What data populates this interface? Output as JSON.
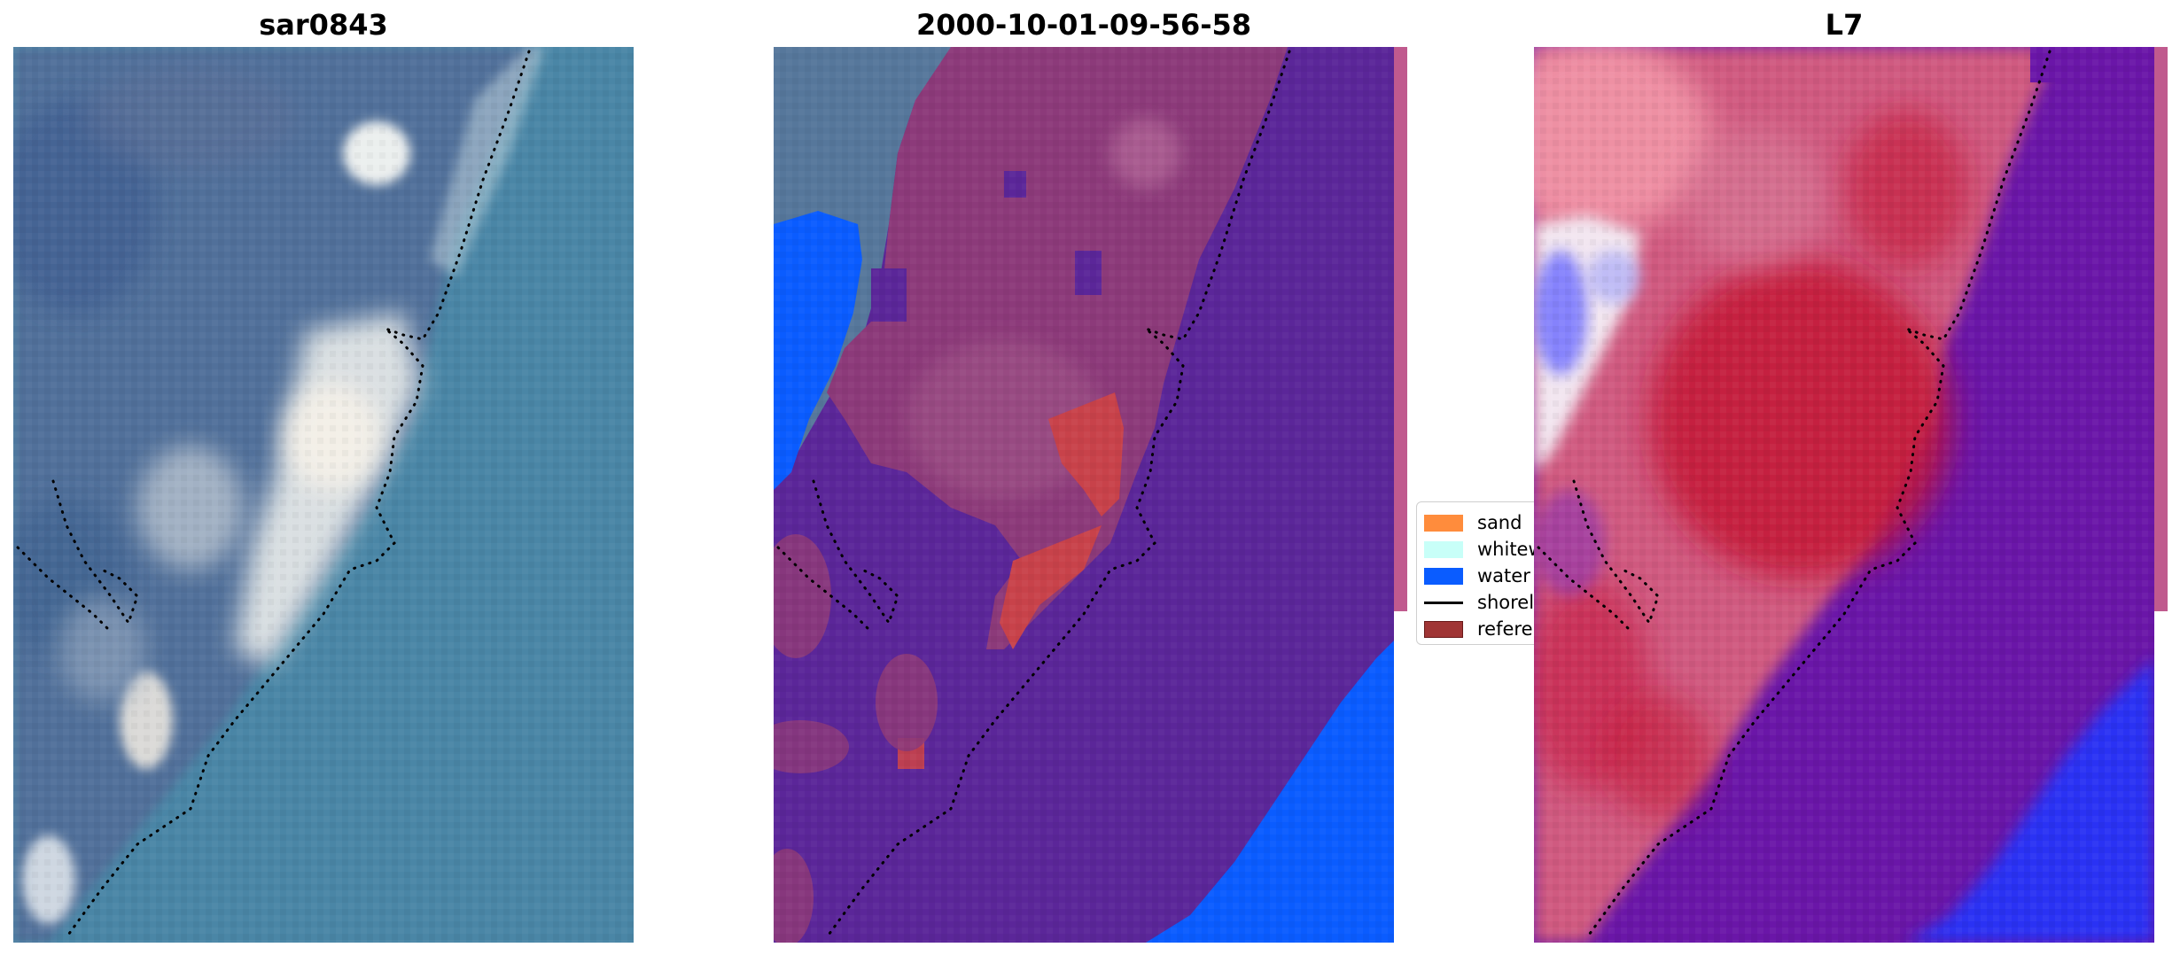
{
  "panels": [
    {
      "title": "sar0843"
    },
    {
      "title": "2000-10-01-09-56-58"
    },
    {
      "title": "L7"
    }
  ],
  "legend": {
    "items": [
      {
        "label": "sand",
        "color": "#ff8c3c",
        "kind": "patch"
      },
      {
        "label": "whitewater",
        "color": "#c8fff8",
        "kind": "patch"
      },
      {
        "label": "water",
        "color": "#0a5cff",
        "kind": "patch"
      },
      {
        "label": "shoreline",
        "color": "#000000",
        "kind": "line"
      },
      {
        "label": "reference",
        "color": "#a03535",
        "kind": "patch"
      }
    ]
  },
  "colors": {
    "rgb_water": "#4a86a6",
    "rgb_land": "#4f6f98",
    "rgb_sand_bright": "#eef3f2",
    "class_other": "#5b2699",
    "class_land_overlay": "#8c3a7a",
    "class_water": "#0a5cff",
    "class_reference": "#c8424a",
    "index_red": "#c41236",
    "index_pink": "#dc6e8e",
    "index_purple": "#6a16a8",
    "index_blue": "#1e2cff",
    "shoreline": "#000000"
  }
}
